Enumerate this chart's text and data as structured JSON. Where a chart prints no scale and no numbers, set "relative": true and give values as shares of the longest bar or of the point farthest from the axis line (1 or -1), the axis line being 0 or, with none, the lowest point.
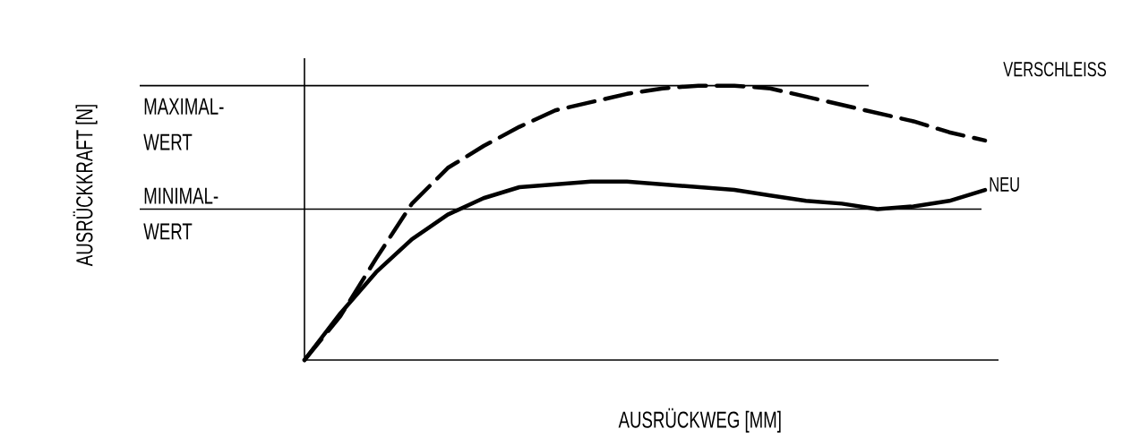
{
  "chart_data": {
    "type": "line",
    "relative": true,
    "legend": false,
    "xlabel": "AUSRÜCKWEG [MM]",
    "annotations": [
      "AUSRÜCKKRAFT [N]"
    ],
    "categories": [
      null,
      null,
      null,
      null,
      null,
      null,
      null,
      null,
      null,
      null,
      null,
      null,
      null,
      null,
      null,
      null,
      null,
      null,
      null,
      null
    ],
    "series": [
      {
        "name": "VERSCHLEISS",
        "color": "#000000",
        "line_style": "dashed",
        "values": [
          0,
          0.16,
          0.37,
          0.57,
          0.7,
          0.78,
          0.85,
          0.91,
          0.94,
          0.97,
          0.99,
          1.0,
          1.0,
          0.99,
          0.96,
          0.93,
          0.9,
          0.87,
          0.83,
          0.8
        ]
      },
      {
        "name": "NEU",
        "color": "#000000",
        "line_style": "solid",
        "values": [
          0,
          0.17,
          0.32,
          0.44,
          0.53,
          0.59,
          0.63,
          0.64,
          0.65,
          0.65,
          0.64,
          0.63,
          0.62,
          0.6,
          0.58,
          0.57,
          0.55,
          0.56,
          0.58,
          0.62
        ]
      }
    ],
    "ref_lines": [
      {
        "axis": "y",
        "value": 1.0,
        "label": "MAXIMAL-WERT"
      },
      {
        "axis": "y",
        "value": 0.55,
        "label": "MINIMAL-WERT"
      }
    ]
  }
}
